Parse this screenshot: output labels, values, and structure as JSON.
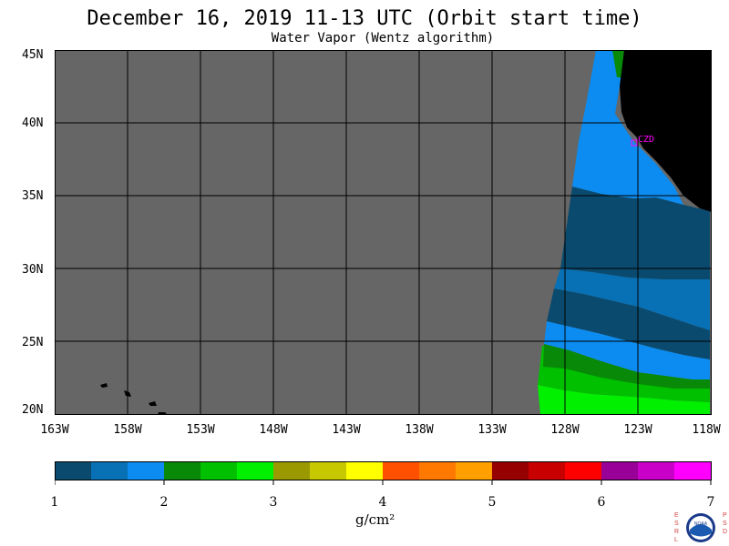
{
  "title": "December 16, 2019  11-13 UTC  (Orbit start time)",
  "subtitle": "Water Vapor (Wentz algorithm)",
  "y_axis_labels": [
    "45N",
    "40N",
    "35N",
    "30N",
    "25N",
    "20N"
  ],
  "x_axis_labels": [
    "163W",
    "158W",
    "153W",
    "148W",
    "143W",
    "138W",
    "133W",
    "128W",
    "123W",
    "118W"
  ],
  "station_label": "CZD",
  "colorbar": {
    "ticks": [
      "1",
      "2",
      "3",
      "4",
      "5",
      "6",
      "7"
    ],
    "units": "g/cm²",
    "colors": [
      "#0a4a6e",
      "#0870b4",
      "#0c8cf0",
      "#088a08",
      "#00c000",
      "#00f000",
      "#9a9a00",
      "#c8c800",
      "#ffff00",
      "#ff5000",
      "#ff7800",
      "#ffa000",
      "#960000",
      "#c80000",
      "#ff0000",
      "#980098",
      "#c800c8",
      "#ff00ff"
    ]
  },
  "logo": {
    "left_letters": "E S R L",
    "right_letters": "P S D",
    "emblem_text": "NOAA"
  },
  "map_colors": {
    "no_data": "#666666",
    "land": "#000000",
    "grid": "#000000",
    "station": "#ff00ff"
  }
}
